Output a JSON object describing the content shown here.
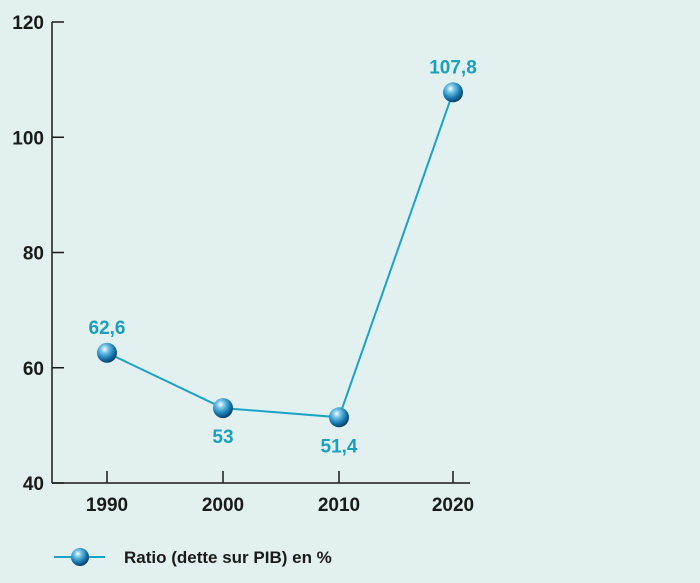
{
  "chart_data": {
    "type": "line",
    "title": "",
    "xlabel": "",
    "ylabel": "",
    "categories": [
      "1990",
      "2000",
      "2010",
      "2020"
    ],
    "series": [
      {
        "name": "Ratio (dette sur PIB) en %",
        "values": [
          62.6,
          53,
          51.4,
          107.8
        ],
        "labels": [
          "62,6",
          "53",
          "51,4",
          "107,8"
        ],
        "label_positions": [
          "above",
          "below",
          "below",
          "above"
        ]
      }
    ],
    "ylim": [
      40,
      120
    ],
    "yticks": [
      "40",
      "60",
      "80",
      "100",
      "120"
    ],
    "grid": false,
    "legend": "bottom-left",
    "colors": {
      "line": "#1ba3c6",
      "label": "#1a9fc0",
      "axis": "#1a1a1a",
      "background": "#e2f0ef"
    }
  }
}
